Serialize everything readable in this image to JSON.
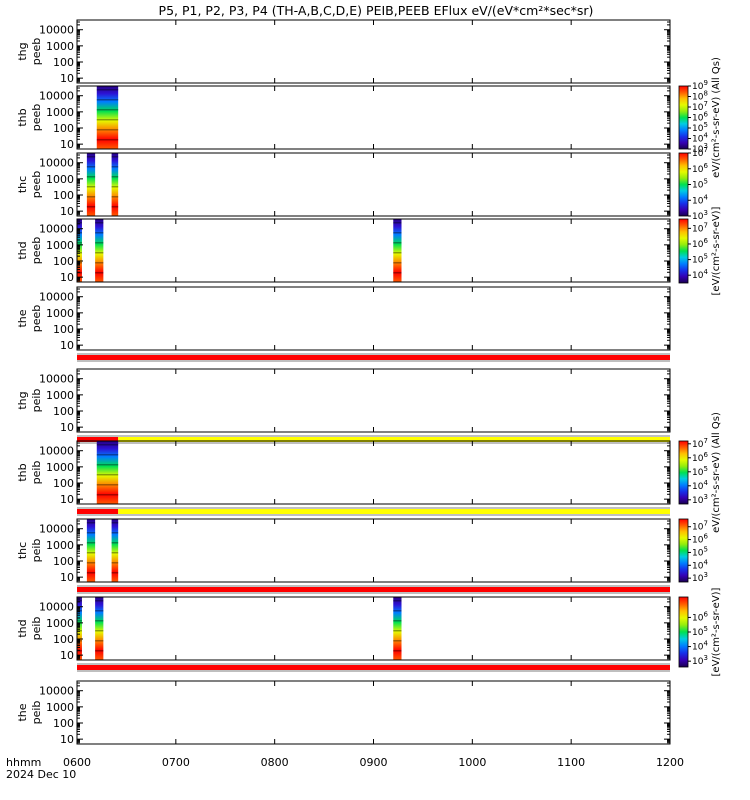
{
  "title": "P5, P1, P2, P3, P4 (TH-A,B,C,D,E) PEIB,PEEB EFlux eV/(eV*cm²*sec*sr)",
  "chart_data": {
    "type": "heatmap",
    "x_axis": {
      "label": "hhmm",
      "date": "2024 Dec 10",
      "range": [
        "0600",
        "1200"
      ],
      "ticks": [
        "0600",
        "0700",
        "0800",
        "0900",
        "1000",
        "1100",
        "1200"
      ]
    },
    "y_axis": {
      "scale": "log",
      "range": [
        5,
        40000
      ],
      "ticks": [
        "10",
        "100",
        "1000",
        "10000"
      ]
    },
    "colorbars": [
      {
        "panels": [
          "thb-peeb"
        ],
        "min_exp": 3,
        "max_exp": 9,
        "tick_exps": [
          3,
          4,
          5,
          6,
          7,
          8,
          9
        ],
        "label": "eV/(cm²-s-sr-eV) (All Qs)"
      },
      {
        "panels": [
          "thc-peeb"
        ],
        "min_exp": 3,
        "max_exp": 7,
        "tick_exps": [
          3,
          4,
          5,
          6,
          7
        ],
        "label": ""
      },
      {
        "panels": [
          "thd-peeb"
        ],
        "min_exp": 3.5,
        "max_exp": 7.6,
        "tick_exps": [
          4,
          5,
          6,
          7
        ],
        "label": "[eV/(cm²-s-sr-eV)]"
      },
      {
        "panels": [
          "thb-peib"
        ],
        "min_exp": 2.7,
        "max_exp": 7.2,
        "tick_exps": [
          3,
          4,
          5,
          6,
          7
        ],
        "label": "eV/(cm²-s-sr-eV) (All Qs)"
      },
      {
        "panels": [
          "thc-peib"
        ],
        "min_exp": 2.7,
        "max_exp": 7.6,
        "tick_exps": [
          3,
          4,
          5,
          6,
          7
        ],
        "label": ""
      },
      {
        "panels": [
          "thd-peib"
        ],
        "min_exp": 2.6,
        "max_exp": 7.4,
        "tick_exps": [
          3,
          4,
          5,
          6
        ],
        "label": "[eV/(cm²-s-sr-eV)]"
      }
    ],
    "panels": [
      {
        "id": "tha-peeb",
        "probe": "thg",
        "product": "peeb",
        "blocks": [],
        "flag_below": null
      },
      {
        "id": "thb-peeb",
        "probe": "thb",
        "product": "peeb",
        "blocks": [
          [
            "0612",
            "0625"
          ]
        ],
        "flag_below": null
      },
      {
        "id": "thc-peeb",
        "probe": "thc",
        "product": "peeb",
        "blocks": [
          [
            "0606",
            "0611"
          ],
          [
            "0621",
            "0625"
          ]
        ],
        "flag_below": null
      },
      {
        "id": "thd-peeb",
        "probe": "thd",
        "product": "peeb",
        "blocks": [
          [
            "0600",
            "0603"
          ],
          [
            "0611",
            "0616"
          ],
          [
            "0912",
            "0917"
          ]
        ],
        "flag_below": null
      },
      {
        "id": "the-peeb",
        "probe": "the",
        "product": "peeb",
        "blocks": [],
        "flag_below": {
          "color": "#ff0000",
          "ranges": [
            [
              "0600",
              "1200"
            ]
          ]
        }
      },
      {
        "id": "tha-peib",
        "probe": "thg",
        "product": "peib",
        "blocks": [],
        "flag_below": {
          "color": "#ff0000",
          "ranges": [
            [
              "0600",
              "0625"
            ]
          ],
          "alt": {
            "color": "#ffff00",
            "ranges": [
              [
                "0625",
                "1200"
              ]
            ]
          }
        }
      },
      {
        "id": "thb-peib",
        "probe": "thb",
        "product": "peib",
        "blocks": [
          [
            "0612",
            "0625"
          ]
        ],
        "flag_below": {
          "color": "#ff0000",
          "ranges": [
            [
              "0600",
              "0625"
            ]
          ],
          "alt": {
            "color": "#ffff00",
            "ranges": [
              [
                "0625",
                "1200"
              ]
            ]
          }
        }
      },
      {
        "id": "thc-peib",
        "probe": "thc",
        "product": "peib",
        "blocks": [
          [
            "0606",
            "0611"
          ],
          [
            "0621",
            "0625"
          ]
        ],
        "flag_below": {
          "color": "#ff0000",
          "ranges": [
            [
              "0600",
              "1200"
            ]
          ]
        }
      },
      {
        "id": "thd-peib",
        "probe": "thd",
        "product": "peib",
        "blocks": [
          [
            "0600",
            "0603"
          ],
          [
            "0611",
            "0616"
          ],
          [
            "0912",
            "0917"
          ]
        ],
        "flag_below": {
          "color": "#ff0000",
          "ranges": [
            [
              "0600",
              "1200"
            ]
          ]
        }
      },
      {
        "id": "the-peib",
        "probe": "the",
        "product": "peib",
        "blocks": [],
        "flag_below": null
      }
    ]
  }
}
